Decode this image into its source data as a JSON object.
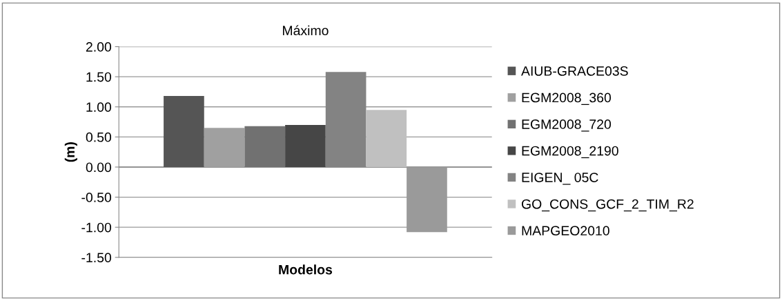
{
  "chart_data": {
    "type": "bar",
    "title": "Máximo",
    "xlabel": "Modelos",
    "ylabel": "(m)",
    "categories": [
      null
    ],
    "series": [
      {
        "name": "AIUB-GRACE03S",
        "color": "#555555",
        "values": [
          1.18
        ]
      },
      {
        "name": "EGM2008_360",
        "color": "#a0a0a0",
        "values": [
          0.65
        ]
      },
      {
        "name": "EGM2008_720",
        "color": "#717171",
        "values": [
          0.68
        ]
      },
      {
        "name": "EGM2008_2190",
        "color": "#464646",
        "values": [
          0.7
        ]
      },
      {
        "name": "EIGEN_ 05C",
        "color": "#838383",
        "values": [
          1.58
        ]
      },
      {
        "name": "GO_CONS_GCF_2_TIM_R2",
        "color": "#c0c0c0",
        "values": [
          0.95
        ]
      },
      {
        "name": "MAPGEO2010",
        "color": "#9a9a9a",
        "values": [
          -1.08
        ]
      }
    ],
    "ylim": [
      -1.5,
      2.0
    ],
    "yticks": [
      {
        "value": -1.5,
        "label": "-1.50"
      },
      {
        "value": -1.0,
        "label": "-1.00"
      },
      {
        "value": -0.5,
        "label": "-0.50"
      },
      {
        "value": 0,
        "label": "0.00"
      },
      {
        "value": 0.5,
        "label": "0.50"
      },
      {
        "value": 1.0,
        "label": "1.00"
      },
      {
        "value": 1.5,
        "label": "1.50"
      },
      {
        "value": 2.0,
        "label": "2.00"
      }
    ],
    "grid": "y",
    "legend": "right"
  }
}
